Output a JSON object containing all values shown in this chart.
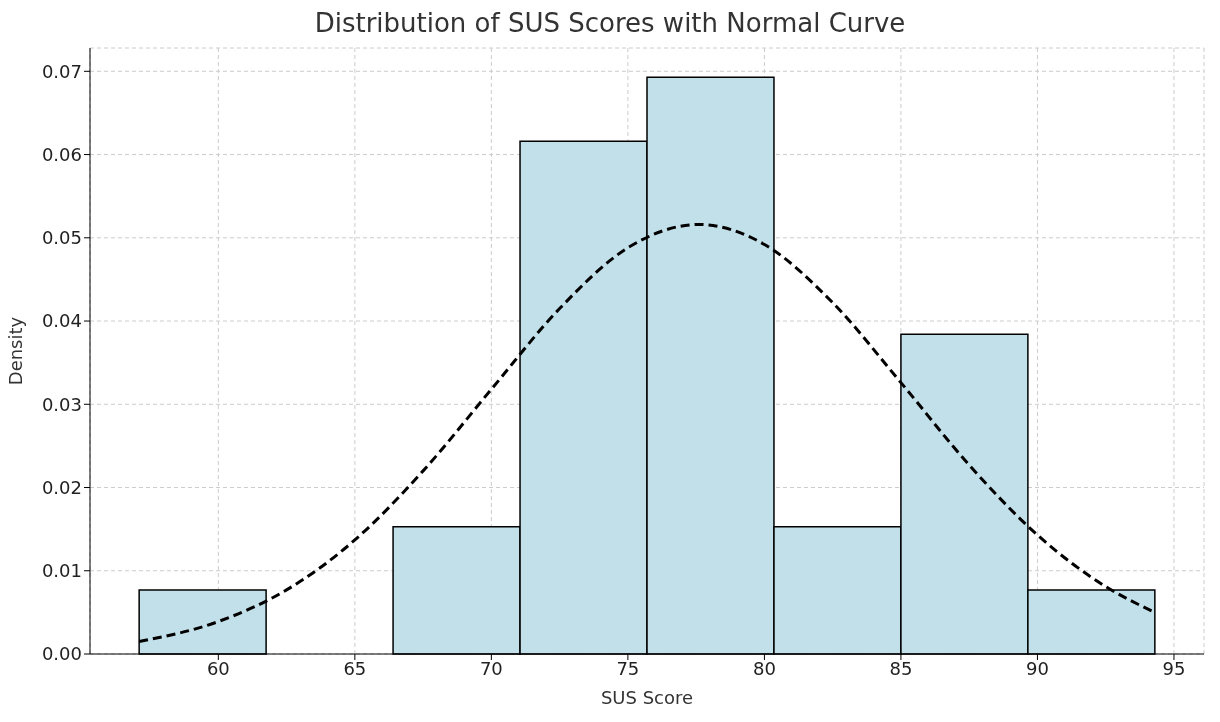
{
  "chart_data": {
    "type": "histogram",
    "title": "Distribution of SUS Scores with Normal Curve",
    "xlabel": "SUS Score",
    "ylabel": "Density",
    "bins": [
      57.1,
      61.75,
      66.4,
      71.05,
      75.7,
      80.35,
      85.0,
      89.65,
      94.3
    ],
    "values": [
      0.0077,
      0,
      0.0153,
      0.0616,
      0.0693,
      0.0153,
      0.0384,
      0.0077
    ],
    "color": "#c1e0ea",
    "series": [
      {
        "type": "line",
        "color": "#000000",
        "line_style": "dashed",
        "marker": "none",
        "x": [
          57.1,
          60,
          62.5,
          65,
          67.5,
          70,
          72.5,
          75,
          77.6,
          80,
          82.5,
          85,
          87.5,
          90,
          92.5,
          94.3
        ],
        "values": [
          0.0015,
          0.0039,
          0.0077,
          0.0137,
          0.022,
          0.0318,
          0.0415,
          0.0488,
          0.0516,
          0.0492,
          0.0422,
          0.0326,
          0.0227,
          0.0143,
          0.0081,
          0.005
        ]
      }
    ],
    "xlim": [
      55.3,
      96.1
    ],
    "xticks": [
      60,
      65,
      70,
      75,
      80,
      85,
      90,
      95
    ],
    "ylim": [
      0,
      0.0728
    ],
    "yticks": [
      {
        "value": 0,
        "label": "0.00"
      },
      0.01,
      0.02,
      0.03,
      0.04,
      0.05,
      0.06,
      0.07
    ],
    "grid": true
  }
}
